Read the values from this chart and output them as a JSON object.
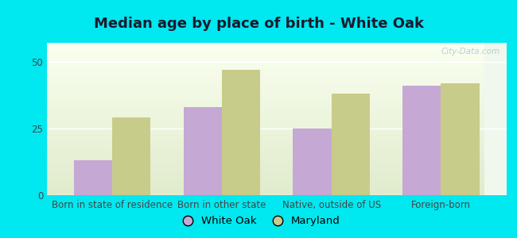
{
  "title": "Median age by place of birth - White Oak",
  "categories": [
    "Born in state of residence",
    "Born in other state",
    "Native, outside of US",
    "Foreign-born"
  ],
  "white_oak_values": [
    13,
    33,
    25,
    41
  ],
  "maryland_values": [
    29,
    47,
    38,
    42
  ],
  "white_oak_color": "#c5a8d4",
  "maryland_color": "#c8cc8a",
  "yticks": [
    0,
    25,
    50
  ],
  "ylim": [
    0,
    57
  ],
  "background_outer": "#00e8f0",
  "background_inner": "#e0eed8",
  "legend_white_oak": "White Oak",
  "legend_maryland": "Maryland",
  "bar_width": 0.35,
  "title_fontsize": 13,
  "tick_fontsize": 8.5,
  "legend_fontsize": 9.5,
  "watermark": "City-Data.com"
}
